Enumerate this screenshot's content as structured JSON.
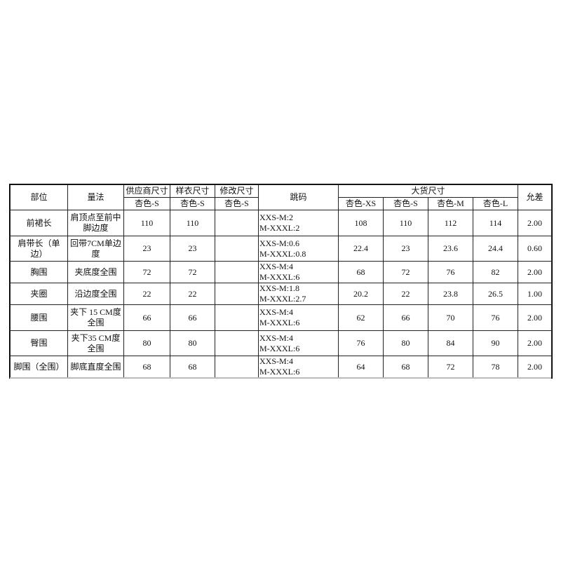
{
  "headers": {
    "part": "部位",
    "method": "量法",
    "supplier": "供应商尺寸",
    "sample": "样衣尺寸",
    "revised": "修改尺寸",
    "grade": "跳码",
    "bulk": "大货尺寸",
    "tolerance": "允差",
    "supplier_sub": "杏色-S",
    "sample_sub": "杏色-S",
    "revised_sub": "杏色-S",
    "bulk_sizes": [
      "杏色-XS",
      "杏色-S",
      "杏色-M",
      "杏色-L"
    ]
  },
  "rows": [
    {
      "part": "前裙长",
      "method": "肩顶点至前中脚边度",
      "supplier": "110",
      "sample": "110",
      "revised": "",
      "grade1": "XXS-M:2",
      "grade2": "M-XXXL:2",
      "xs": "108",
      "s": "110",
      "m": "112",
      "l": "114",
      "tol": "2.00"
    },
    {
      "part": "肩带长（单边）",
      "method": "回带7CM单边度",
      "supplier": "23",
      "sample": "23",
      "revised": "",
      "grade1": "XXS-M:0.6",
      "grade2": "M-XXXL:0.8",
      "xs": "22.4",
      "s": "23",
      "m": "23.6",
      "l": "24.4",
      "tol": "0.60"
    },
    {
      "part": "胸围",
      "method": "夹底度全围",
      "supplier": "72",
      "sample": "72",
      "revised": "",
      "grade1": "XXS-M:4",
      "grade2": "M-XXXL:6",
      "xs": "68",
      "s": "72",
      "m": "76",
      "l": "82",
      "tol": "2.00"
    },
    {
      "part": "夹圈",
      "method": "沿边度全围",
      "supplier": "22",
      "sample": "22",
      "revised": "",
      "grade1": "XXS-M:1.8",
      "grade2": "M-XXXL:2.7",
      "xs": "20.2",
      "s": "22",
      "m": "23.8",
      "l": "26.5",
      "tol": "1.00"
    },
    {
      "part": "腰围",
      "method": "夹下 15 CM度全围",
      "supplier": "66",
      "sample": "66",
      "revised": "",
      "grade1": "XXS-M:4",
      "grade2": "M-XXXL:6",
      "xs": "62",
      "s": "66",
      "m": "70",
      "l": "76",
      "tol": "2.00"
    },
    {
      "part": "臀围",
      "method": "夹下35 CM度全围",
      "supplier": "80",
      "sample": "80",
      "revised": "",
      "grade1": "XXS-M:4",
      "grade2": "M-XXXL:6",
      "xs": "76",
      "s": "80",
      "m": "84",
      "l": "90",
      "tol": "2.00"
    },
    {
      "part": "脚围（全围）",
      "method": "脚底直度全围",
      "supplier": "68",
      "sample": "68",
      "revised": "",
      "grade1": "XXS-M:4",
      "grade2": "M-XXXL:6",
      "xs": "64",
      "s": "68",
      "m": "72",
      "l": "78",
      "tol": "2.00"
    }
  ]
}
